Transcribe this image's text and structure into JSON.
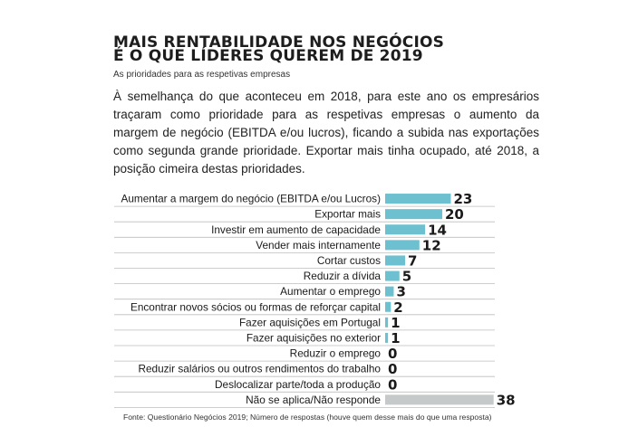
{
  "title_line1": "MAIS RENTABILIDADE NOS NEGÓCIOS",
  "title_line2": "É O QUE LÍDERES QUEREM DE 2019",
  "subtitle": "As prioridades para as respetivas empresas",
  "intro": "À semelhança do que aconteceu em 2018, para este ano os empresários traçaram como prioridade para as respetivas empresas o aumento da margem de negócio (EBITDA e/ou lucros), ficando a subida nas exportações como segunda grande prioridade. Exportar mais tinha ocupado, até 2018, a posição cimeira destas prioridades.",
  "source": "Fonte: Questionário Negócios 2019; Número de respostas (houve quem desse mais do  que uma resposta)",
  "chart_data": {
    "type": "bar",
    "orientation": "horizontal",
    "categories": [
      "Aumentar a margem do negócio (EBITDA e/ou Lucros)",
      "Exportar mais",
      "Investir em aumento de capacidade",
      "Vender mais internamente",
      "Cortar custos",
      "Reduzir a dívida",
      "Aumentar o emprego",
      "Encontrar novos sócios ou formas de reforçar capital",
      "Fazer aquisições em Portugal",
      "Fazer aquisições no exterior",
      "Reduzir o emprego",
      "Reduzir salários ou outros rendimentos do trabalho",
      "Deslocalizar parte/toda a produção",
      "Não se aplica/Não responde"
    ],
    "values": [
      23,
      20,
      14,
      12,
      7,
      5,
      3,
      2,
      1,
      1,
      0,
      0,
      0,
      38
    ],
    "colors": {
      "bar": "#6dc0cf",
      "highlight_bar": "#c5c9c9",
      "row_line": "#bdbdbd"
    },
    "highlight_index": 13
  }
}
